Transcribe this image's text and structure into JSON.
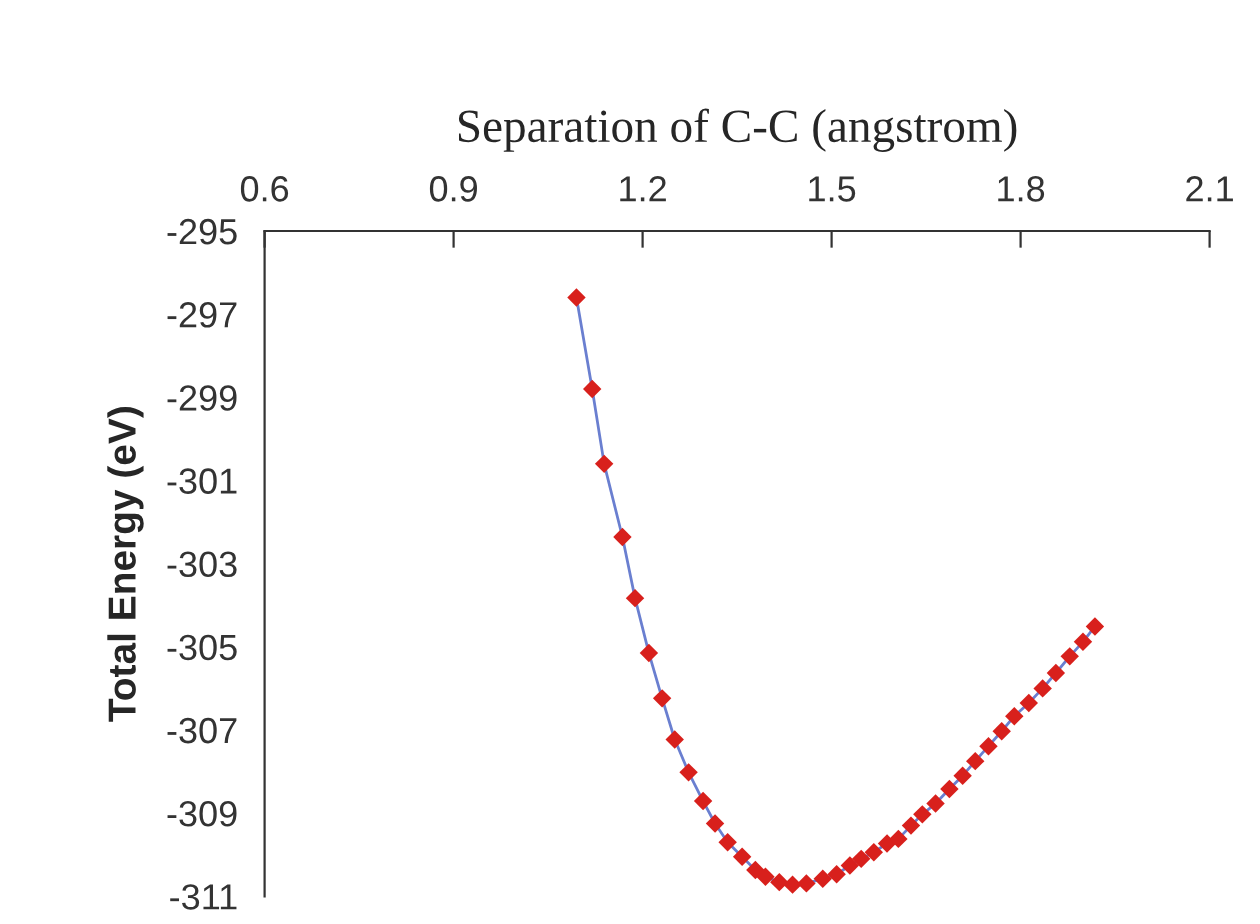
{
  "chart_data": {
    "type": "scatter",
    "xlabel": "Separation of C-C (angstrom)",
    "ylabel": "Total Energy (eV)",
    "xlim": [
      0.6,
      2.1
    ],
    "xticks": [
      0.6,
      0.9,
      1.2,
      1.5,
      1.8,
      2.1
    ],
    "ylim": [
      -311,
      -295
    ],
    "yticks": [
      -295,
      -297,
      -299,
      -301,
      -303,
      -305,
      -307,
      -309,
      -311
    ],
    "grid": false,
    "series": [
      {
        "type": "line",
        "color": "#6a7fd0",
        "marker": "none",
        "x": [
          1.095,
          1.12,
          1.139,
          1.168,
          1.188,
          1.21,
          1.231,
          1.251,
          1.273,
          1.296,
          1.315,
          1.335,
          1.358,
          1.379,
          1.395,
          1.417,
          1.438,
          1.46,
          1.486,
          1.508,
          1.529,
          1.547,
          1.567,
          1.588,
          1.606,
          1.626,
          1.644,
          1.665,
          1.687,
          1.708,
          1.728,
          1.749,
          1.77,
          1.79,
          1.813,
          1.835,
          1.856,
          1.878,
          1.899,
          1.918
        ],
        "values": [
          -296.6,
          -298.8,
          -300.6,
          -302.36,
          -303.83,
          -305.15,
          -306.24,
          -307.23,
          -308.02,
          -308.71,
          -309.25,
          -309.7,
          -310.05,
          -310.37,
          -310.53,
          -310.66,
          -310.72,
          -310.69,
          -310.58,
          -310.47,
          -310.26,
          -310.1,
          -309.94,
          -309.73,
          -309.62,
          -309.3,
          -309.03,
          -308.77,
          -308.42,
          -308.1,
          -307.75,
          -307.39,
          -307.03,
          -306.67,
          -306.35,
          -306.0,
          -305.63,
          -305.23,
          -304.88,
          -304.51
        ]
      },
      {
        "color": "#d8201c",
        "marker": "diamond",
        "x": [
          1.095,
          1.12,
          1.139,
          1.168,
          1.188,
          1.21,
          1.231,
          1.251,
          1.273,
          1.296,
          1.315,
          1.335,
          1.358,
          1.379,
          1.395,
          1.417,
          1.438,
          1.46,
          1.486,
          1.508,
          1.529,
          1.547,
          1.567,
          1.588,
          1.606,
          1.626,
          1.644,
          1.665,
          1.687,
          1.708,
          1.728,
          1.749,
          1.77,
          1.79,
          1.813,
          1.835,
          1.856,
          1.878,
          1.899,
          1.918
        ],
        "values": [
          -296.6,
          -298.8,
          -300.6,
          -302.36,
          -303.83,
          -305.15,
          -306.24,
          -307.23,
          -308.02,
          -308.71,
          -309.25,
          -309.7,
          -310.05,
          -310.37,
          -310.53,
          -310.66,
          -310.72,
          -310.69,
          -310.58,
          -310.47,
          -310.26,
          -310.1,
          -309.94,
          -309.73,
          -309.62,
          -309.3,
          -309.03,
          -308.77,
          -308.42,
          -308.1,
          -307.75,
          -307.39,
          -307.03,
          -306.67,
          -306.35,
          -306.0,
          -305.63,
          -305.23,
          -304.88,
          -304.51
        ]
      }
    ]
  }
}
